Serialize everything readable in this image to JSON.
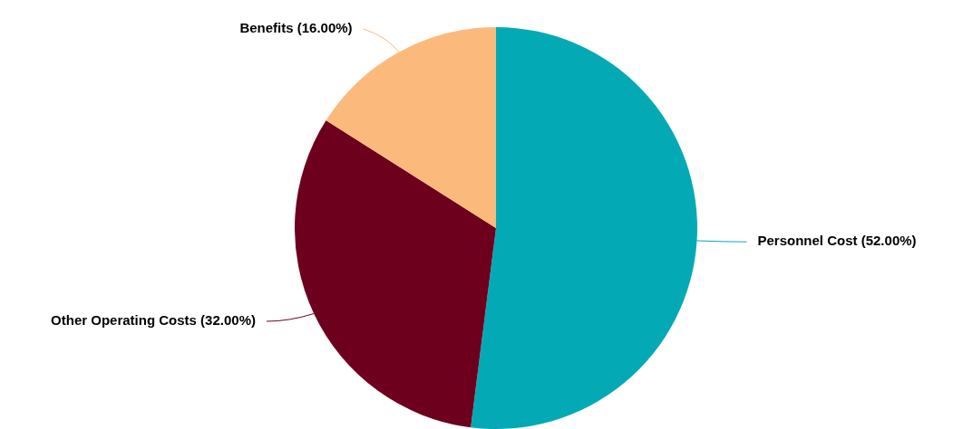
{
  "chart_data": {
    "type": "pie",
    "categories": [
      "Personnel Cost",
      "Other Operating Costs",
      "Benefits"
    ],
    "values": [
      52,
      32,
      16
    ],
    "value_labels": [
      "(52.00%)",
      "(32.00%)",
      "(16.00%)"
    ],
    "colors": [
      "#03aab6",
      "#6d001d",
      "#fcb97c"
    ],
    "legend": false
  }
}
